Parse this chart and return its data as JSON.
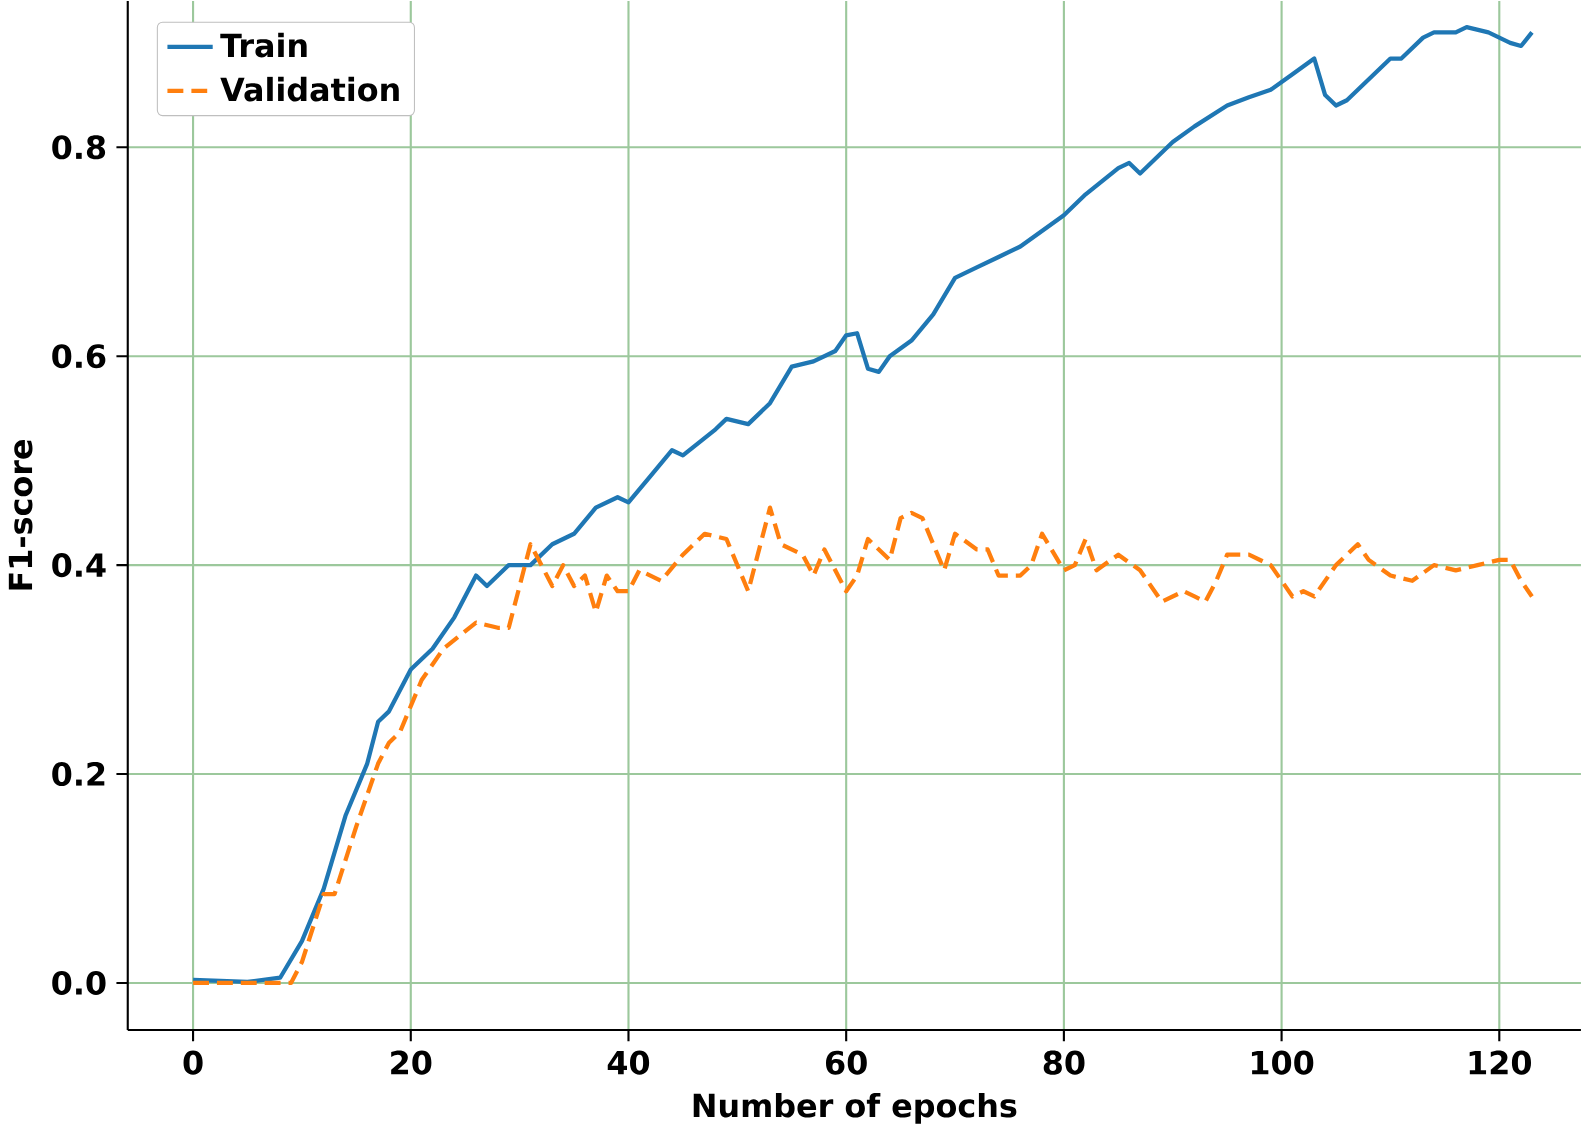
{
  "chart_data": {
    "type": "line",
    "xlabel": "Number of epochs",
    "ylabel": "F1-score",
    "xlim": [
      -6,
      127.5
    ],
    "ylim": [
      -0.045,
      0.94
    ],
    "xticks": [
      0,
      20,
      40,
      60,
      80,
      100,
      120
    ],
    "yticks": [
      {
        "value": 0,
        "label": "0.0"
      },
      {
        "value": 0.2,
        "label": "0.2"
      },
      {
        "value": 0.4,
        "label": "0.4"
      },
      {
        "value": 0.6,
        "label": "0.6"
      },
      {
        "value": 0.8,
        "label": "0.8"
      }
    ],
    "grid": true,
    "legend": "top left",
    "marker": "none",
    "series": [
      {
        "name": "Train",
        "color": "#1f77b4",
        "line_style": "solid",
        "x": [
          0,
          5,
          8,
          10,
          12,
          14,
          16,
          17,
          18,
          20,
          22,
          24,
          26,
          27,
          29,
          31,
          33,
          35,
          37,
          39,
          40,
          42,
          44,
          45,
          48,
          49,
          51,
          53,
          55,
          57,
          59,
          60,
          61,
          62,
          63,
          64,
          66,
          68,
          70,
          72,
          73,
          74,
          76,
          78,
          80,
          82,
          85,
          86,
          87,
          90,
          92,
          95,
          97,
          99,
          101,
          103,
          104,
          105,
          106,
          108,
          110,
          111,
          113,
          114,
          116,
          117,
          119,
          121,
          122,
          123
        ],
        "values": [
          0.003,
          0.001,
          0.005,
          0.04,
          0.09,
          0.16,
          0.21,
          0.25,
          0.26,
          0.3,
          0.32,
          0.35,
          0.39,
          0.38,
          0.4,
          0.4,
          0.42,
          0.43,
          0.455,
          0.465,
          0.46,
          0.485,
          0.51,
          0.505,
          0.53,
          0.54,
          0.535,
          0.555,
          0.59,
          0.595,
          0.605,
          0.62,
          0.622,
          0.588,
          0.585,
          0.6,
          0.615,
          0.64,
          0.675,
          0.685,
          0.69,
          0.695,
          0.705,
          0.72,
          0.735,
          0.755,
          0.78,
          0.785,
          0.775,
          0.805,
          0.82,
          0.84,
          0.848,
          0.855,
          0.87,
          0.885,
          0.85,
          0.84,
          0.845,
          0.865,
          0.885,
          0.885,
          0.905,
          0.91,
          0.91,
          0.915,
          0.91,
          0.9,
          0.897,
          0.91
        ]
      },
      {
        "name": "Validation",
        "color": "#ff7f0e",
        "line_style": "dashed",
        "x": [
          0,
          9,
          10,
          12,
          13,
          15,
          17,
          18,
          19,
          21,
          23,
          26,
          28,
          29,
          30,
          31,
          33,
          34,
          35,
          36,
          37,
          38,
          39,
          40,
          41,
          43,
          45,
          47,
          49,
          51,
          53,
          54,
          56,
          57,
          58,
          60,
          61,
          62,
          64,
          65,
          66,
          67,
          69,
          70,
          72,
          73,
          74,
          76,
          77,
          78,
          80,
          81,
          82,
          83,
          85,
          87,
          89,
          91,
          92,
          93,
          94,
          95,
          97,
          99,
          100,
          101,
          102,
          103,
          105,
          106,
          107,
          108,
          110,
          112,
          114,
          116,
          118,
          120,
          121,
          122,
          123
        ],
        "values": [
          0,
          0,
          0.02,
          0.085,
          0.085,
          0.15,
          0.21,
          0.23,
          0.24,
          0.29,
          0.32,
          0.345,
          0.34,
          0.34,
          0.38,
          0.42,
          0.38,
          0.4,
          0.38,
          0.39,
          0.355,
          0.39,
          0.375,
          0.375,
          0.395,
          0.385,
          0.41,
          0.43,
          0.425,
          0.375,
          0.455,
          0.42,
          0.41,
          0.39,
          0.415,
          0.375,
          0.39,
          0.425,
          0.405,
          0.445,
          0.45,
          0.445,
          0.395,
          0.43,
          0.415,
          0.415,
          0.39,
          0.39,
          0.4,
          0.43,
          0.395,
          0.4,
          0.425,
          0.395,
          0.41,
          0.395,
          0.365,
          0.375,
          0.37,
          0.365,
          0.385,
          0.41,
          0.41,
          0.4,
          0.385,
          0.37,
          0.375,
          0.37,
          0.4,
          0.41,
          0.42,
          0.405,
          0.39,
          0.385,
          0.4,
          0.395,
          0.4,
          0.405,
          0.405,
          0.385,
          0.37
        ]
      }
    ]
  }
}
